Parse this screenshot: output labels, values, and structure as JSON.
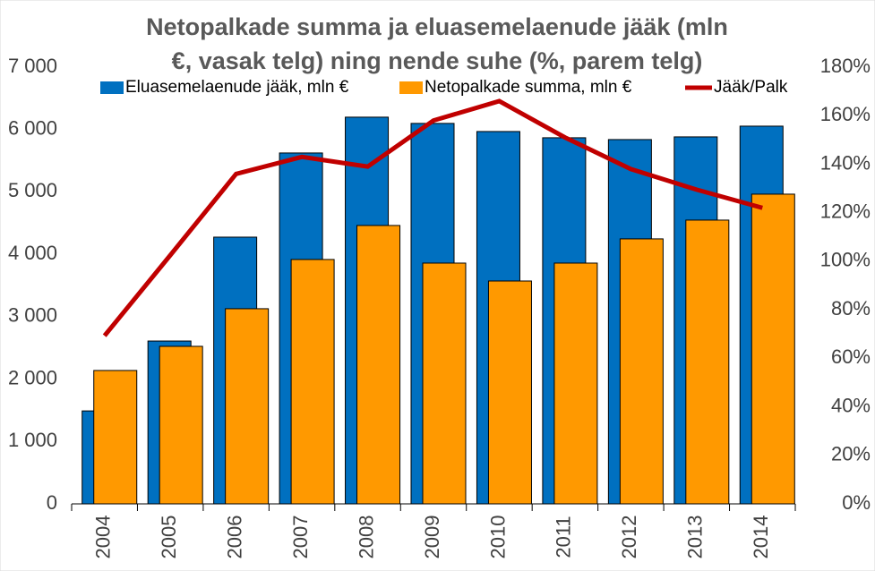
{
  "chart_data": {
    "type": "bar-line",
    "title": "Netopalkade summa ja eluasemelaenude jääk (mln €, vasak telg) ning nende suhe (%, parem telg)",
    "categories": [
      "2004",
      "2005",
      "2006",
      "2007",
      "2008",
      "2009",
      "2010",
      "2011",
      "2012",
      "2013",
      "2014"
    ],
    "series": [
      {
        "name": "Eluasemelaenude jääk, mln €",
        "color": "#0070c0",
        "type": "bar",
        "values": [
          1490,
          2610,
          4275,
          5624,
          6198,
          6098,
          5968,
          5868,
          5839,
          5882,
          6054
        ]
      },
      {
        "name": "Netopalkade summa, mln €",
        "color": "#ff9900",
        "type": "bar",
        "values": [
          2138,
          2525,
          3128,
          3917,
          4462,
          3859,
          3572,
          3859,
          4247,
          4548,
          4964
        ]
      },
      {
        "name": "Jääk/Palk",
        "color": "#c00000",
        "type": "line",
        "axis": "y2",
        "values": [
          69.3,
          102.5,
          136,
          143,
          139,
          158,
          166,
          151,
          138,
          129.5,
          122
        ]
      }
    ],
    "ylim": [
      0,
      7000
    ],
    "yticks": [
      0,
      {
        "value": 1000,
        "label": "1 000"
      },
      {
        "value": 2000,
        "label": "2 000"
      },
      {
        "value": 3000,
        "label": "3 000"
      },
      {
        "value": 4000,
        "label": "4 000"
      },
      {
        "value": 5000,
        "label": "5 000"
      },
      {
        "value": 6000,
        "label": "6 000"
      },
      {
        "value": 7000,
        "label": "7 000"
      }
    ],
    "y2lim": [
      0,
      180
    ],
    "y2ticks": [
      {
        "value": 0,
        "label": "0%"
      },
      {
        "value": 20,
        "label": "20%"
      },
      {
        "value": 40,
        "label": "40%"
      },
      {
        "value": 60,
        "label": "60%"
      },
      {
        "value": 80,
        "label": "80%"
      },
      {
        "value": 100,
        "label": "100%"
      },
      {
        "value": 120,
        "label": "120%"
      },
      {
        "value": 140,
        "label": "140%"
      },
      {
        "value": 160,
        "label": "160%"
      },
      {
        "value": 180,
        "label": "180%"
      }
    ],
    "legend": "top"
  }
}
